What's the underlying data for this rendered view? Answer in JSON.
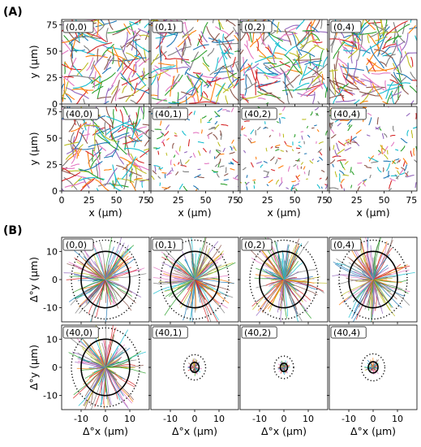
{
  "panels": [
    {
      "label": "(A)"
    },
    {
      "label": "(B)"
    }
  ],
  "chart_data": [
    {
      "type": "line",
      "panel": "(A)",
      "grid": "2x4 subplots",
      "xlabel": "x (μm)",
      "ylabel": "y (μm)",
      "xlim": [
        0,
        80
      ],
      "ylim": [
        0,
        80
      ],
      "xticks": [
        0,
        25,
        50,
        75
      ],
      "yticks": [
        0,
        25,
        50,
        75
      ],
      "grid_lines": false,
      "subplots": [
        {
          "label": "(0,0)",
          "segments": 150,
          "mean_length": 16
        },
        {
          "label": "(0,1)",
          "segments": 150,
          "mean_length": 16
        },
        {
          "label": "(0,2)",
          "segments": 150,
          "mean_length": 16
        },
        {
          "label": "(0,4)",
          "segments": 150,
          "mean_length": 16
        },
        {
          "label": "(40,0)",
          "segments": 150,
          "mean_length": 16
        },
        {
          "label": "(40,1)",
          "segments": 130,
          "mean_length": 4
        },
        {
          "label": "(40,2)",
          "segments": 120,
          "mean_length": 3
        },
        {
          "label": "(40,4)",
          "segments": 130,
          "mean_length": 5
        }
      ]
    },
    {
      "type": "line",
      "panel": "(B)",
      "grid": "2x4 subplots",
      "xlabel": "Δ°x (μm)",
      "ylabel": "Δ°y (μm)",
      "xlim": [
        -18,
        18
      ],
      "ylim": [
        -15,
        15
      ],
      "xticks": [
        -10,
        0,
        10
      ],
      "yticks": [
        -10,
        0,
        10
      ],
      "grid_lines": false,
      "subplots": [
        {
          "label": "(0,0)",
          "solid_circle_radius": 10,
          "dotted_circle_radius": 14,
          "trajectories": 140
        },
        {
          "label": "(0,1)",
          "solid_circle_radius": 10,
          "dotted_circle_radius": 14,
          "trajectories": 140
        },
        {
          "label": "(0,2)",
          "solid_circle_radius": 10,
          "dotted_circle_radius": 14,
          "trajectories": 140
        },
        {
          "label": "(0,4)",
          "solid_circle_radius": 10,
          "dotted_circle_radius": 14,
          "trajectories": 140
        },
        {
          "label": "(40,0)",
          "solid_circle_radius": 10,
          "dotted_circle_radius": 14,
          "trajectories": 140
        },
        {
          "label": "(40,1)",
          "solid_circle_radius": 1.8,
          "dotted_circle_radius": 4.5,
          "trajectories": 60
        },
        {
          "label": "(40,2)",
          "solid_circle_radius": 1.5,
          "dotted_circle_radius": 4.0,
          "trajectories": 60
        },
        {
          "label": "(40,4)",
          "solid_circle_radius": 2.0,
          "dotted_circle_radius": 4.8,
          "trajectories": 60
        }
      ]
    }
  ],
  "palette": [
    "#1f77b4",
    "#ff7f0e",
    "#2ca02c",
    "#d62728",
    "#9467bd",
    "#8c564b",
    "#e377c2",
    "#7f7f7f",
    "#bcbd22",
    "#17becf"
  ]
}
